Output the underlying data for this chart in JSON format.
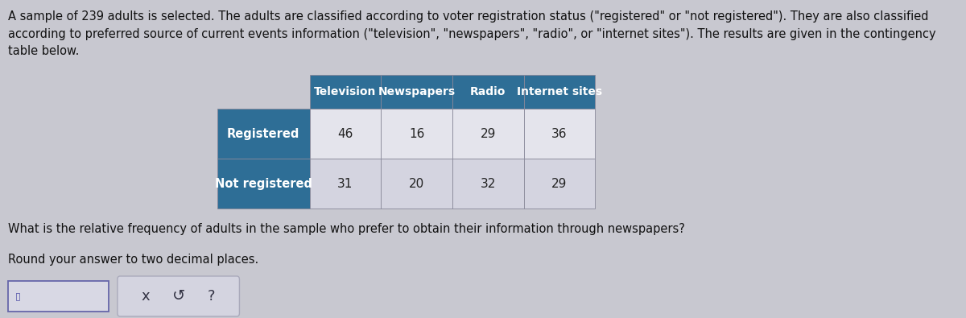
{
  "background_color": "#c8c8d0",
  "paragraph_text": "A sample of 239 adults is selected. The adults are classified according to voter registration status (\"registered\" or \"not registered\"). They are also classified\naccording to preferred source of current events information (\"television\", \"newspapers\", \"radio\", or \"internet sites\"). The results are given in the contingency\ntable below.",
  "paragraph_fontsize": 10.5,
  "col_headers": [
    "Television",
    "Newspapers",
    "Radio",
    "Internet sites"
  ],
  "row_headers": [
    "Registered",
    "Not registered"
  ],
  "data": [
    [
      46,
      16,
      29,
      36
    ],
    [
      31,
      20,
      32,
      29
    ]
  ],
  "header_bg_color": "#2e6e96",
  "header_text_color": "#ffffff",
  "row_header_bg_color": "#2e6e96",
  "row_header_text_color": "#ffffff",
  "cell_bg_color_row0": "#e4e4ec",
  "cell_bg_color_row1": "#d4d4e0",
  "question_text": "What is the relative frequency of adults in the sample who prefer to obtain their information through newspapers?",
  "question_fontsize": 10.5,
  "round_text": "Round your answer to two decimal places.",
  "round_fontsize": 10.5
}
